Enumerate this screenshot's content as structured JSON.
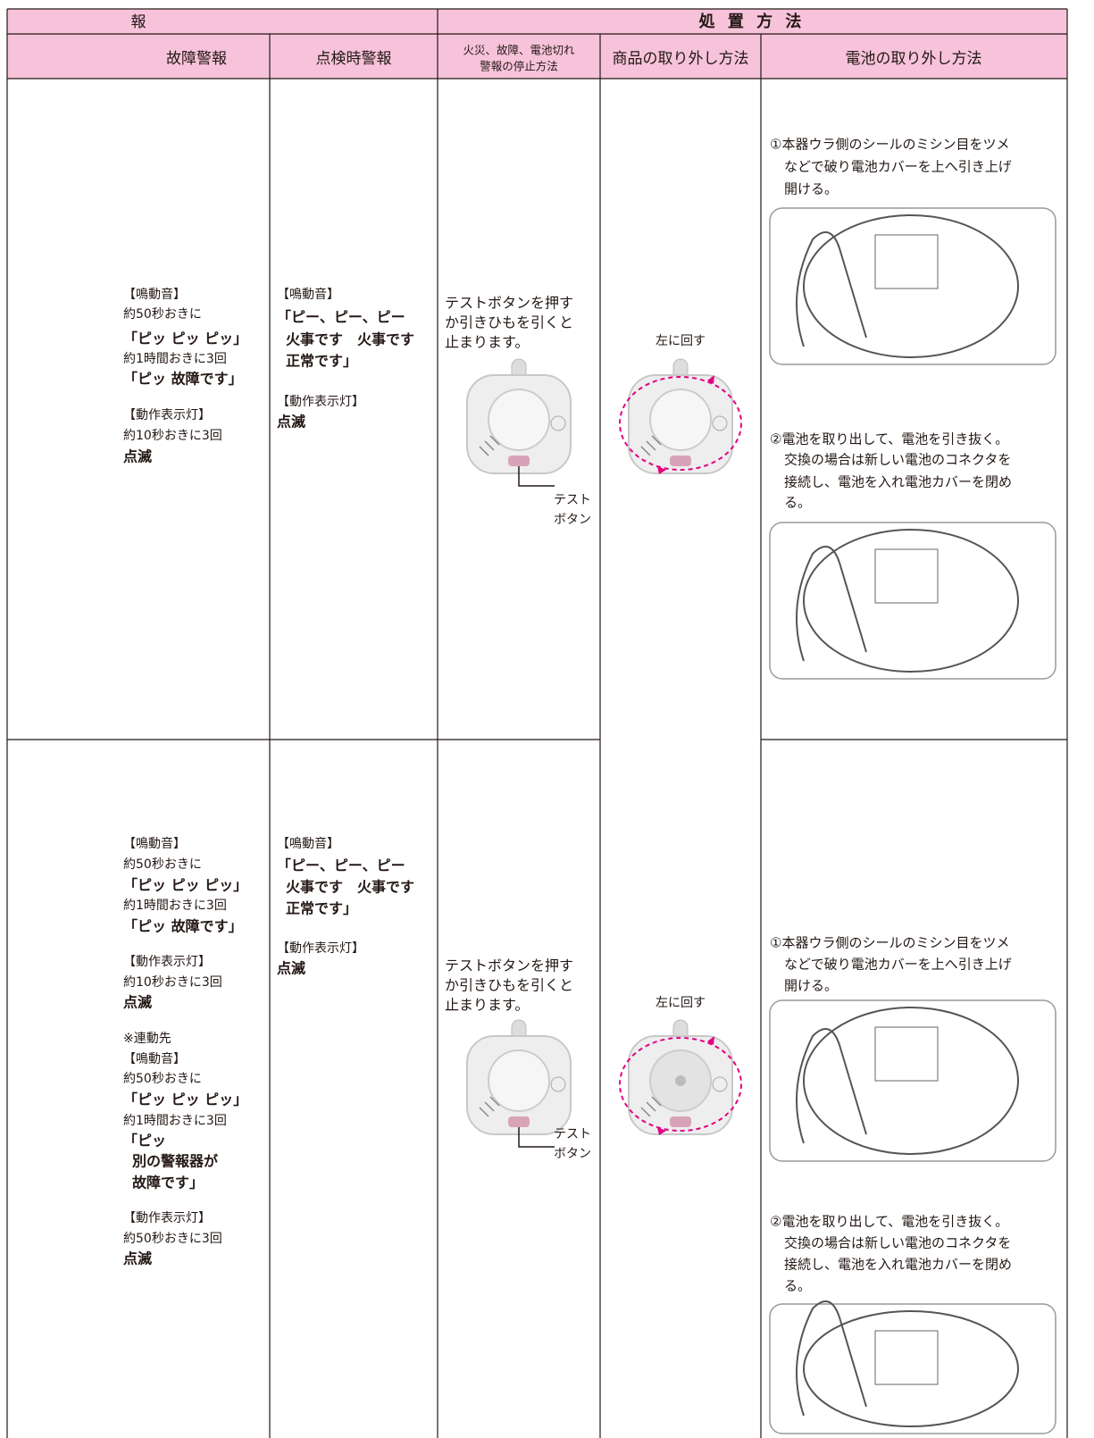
{
  "header": {
    "group_alarm": "報",
    "group_action": "処 置 方 法"
  },
  "columns": [
    "故障警報",
    "点検時警報",
    [
      "火災、故障、電池切れ",
      "警報の停止方法"
    ],
    "商品の取り外し方法",
    "電池の取り外し方法"
  ],
  "rows": [
    {
      "fault_alarm": [
        "【鳴動音】",
        "約50秒おきに",
        "「ピッ ピッ ピッ」",
        "約1時間おきに3回",
        "「ピッ 故障です」",
        "【動作表示灯】",
        "約10秒おきに3回",
        "点滅"
      ],
      "inspection_alarm": [
        "【鳴動音】",
        "「ピー、ピー、ピー",
        "火事です　火事です",
        "正常です」",
        "【動作表示灯】",
        "点滅"
      ],
      "stop_method": [
        "テストボタンを押す",
        "か引きひもを引くと",
        "止まります。"
      ],
      "button_label": [
        "テスト",
        "ボタン"
      ],
      "removal": "左に回す",
      "battery_step1": [
        "①本器ウラ側のシールのミシン目をツメ",
        "などで破り電池カバーを上へ引き上げ",
        "開ける。"
      ],
      "battery_step2": [
        "②電池を取り出して、電池を引き抜く。",
        "交換の場合は新しい電池のコネクタを",
        "接続し、電池を入れ電池カバーを閉め",
        "る。"
      ]
    },
    {
      "fault_alarm": [
        "【鳴動音】",
        "約50秒おきに",
        "「ピッ ピッ ピッ」",
        "約1時間おきに3回",
        "「ピッ 故障です」",
        "【動作表示灯】",
        "約10秒おきに3回",
        "点滅",
        "※連動先",
        "【鳴動音】",
        "約50秒おきに",
        "「ピッ ピッ ピッ」",
        "約1時間おきに3回",
        "「ピッ",
        "別の警報器が",
        "故障です」",
        "【動作表示灯】",
        "約50秒おきに3回",
        "点滅"
      ],
      "inspection_alarm": [
        "【鳴動音】",
        "「ピー、ピー、ピー",
        "火事です　火事です",
        "正常です」",
        "【動作表示灯】",
        "点滅"
      ],
      "stop_method": [
        "テストボタンを押す",
        "か引きひもを引くと",
        "止まります。"
      ],
      "button_label": [
        "テスト",
        "ボタン"
      ],
      "removal": "左に回す",
      "battery_step1": [
        "①本器ウラ側のシールのミシン目をツメ",
        "などで破り電池カバーを上へ引き上げ",
        "開ける。"
      ],
      "battery_step2": [
        "②電池を取り出して、電池を引き抜く。",
        "交換の場合は新しい電池のコネクタを",
        "接続し、電池を入れ電池カバーを閉め",
        "る。"
      ]
    }
  ]
}
